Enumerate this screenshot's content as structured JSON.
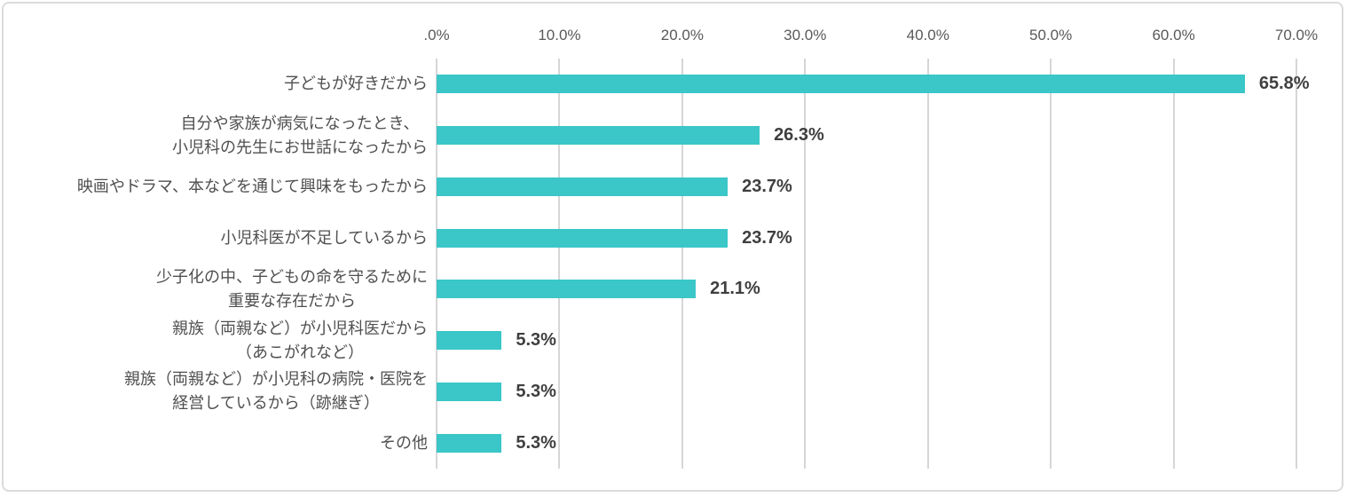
{
  "chart_data": {
    "type": "bar",
    "orientation": "horizontal",
    "title": "",
    "categories": [
      {
        "lines": [
          "子どもが好きだから"
        ]
      },
      {
        "lines": [
          "自分や家族が病気になったとき、",
          "小児科の先生にお世話になったから"
        ]
      },
      {
        "lines": [
          "映画やドラマ、本などを通じて興味をもったから"
        ]
      },
      {
        "lines": [
          "小児科医が不足しているから"
        ]
      },
      {
        "lines": [
          "少子化の中、子どもの命を守るために",
          "重要な存在だから"
        ]
      },
      {
        "lines": [
          "親族（両親など）が小児科医だから",
          "（あこがれなど）"
        ]
      },
      {
        "lines": [
          "親族（両親など）が小児科の病院・医院を",
          "経営しているから（跡継ぎ）"
        ]
      },
      {
        "lines": [
          "その他"
        ]
      }
    ],
    "values": [
      65.8,
      26.3,
      23.7,
      23.7,
      21.1,
      5.3,
      5.3,
      5.3
    ],
    "value_labels": [
      "65.8%",
      "26.3%",
      "23.7%",
      "23.7%",
      "21.1%",
      "5.3%",
      "5.3%",
      "5.3%"
    ],
    "x_axis": {
      "position": "top",
      "min": 0,
      "max": 70,
      "ticks": [
        {
          "value": 0,
          "label": ".0%"
        },
        {
          "value": 10,
          "label": "10.0%"
        },
        {
          "value": 20,
          "label": "20.0%"
        },
        {
          "value": 30,
          "label": "30.0%"
        },
        {
          "value": 40,
          "label": "40.0%"
        },
        {
          "value": 50,
          "label": "50.0%"
        },
        {
          "value": 60,
          "label": "60.0%"
        },
        {
          "value": 70,
          "label": "70.0%"
        }
      ]
    },
    "grid": "vertical",
    "legend": "none",
    "colors": {
      "bar": "#3bc6c8",
      "gridline": "#d6d6d6",
      "category_text": "#4f4f4f",
      "tick_text": "#595959",
      "value_text": "#3f3f3f",
      "card_border": "#dbdbdb",
      "background": "#ffffff"
    }
  }
}
